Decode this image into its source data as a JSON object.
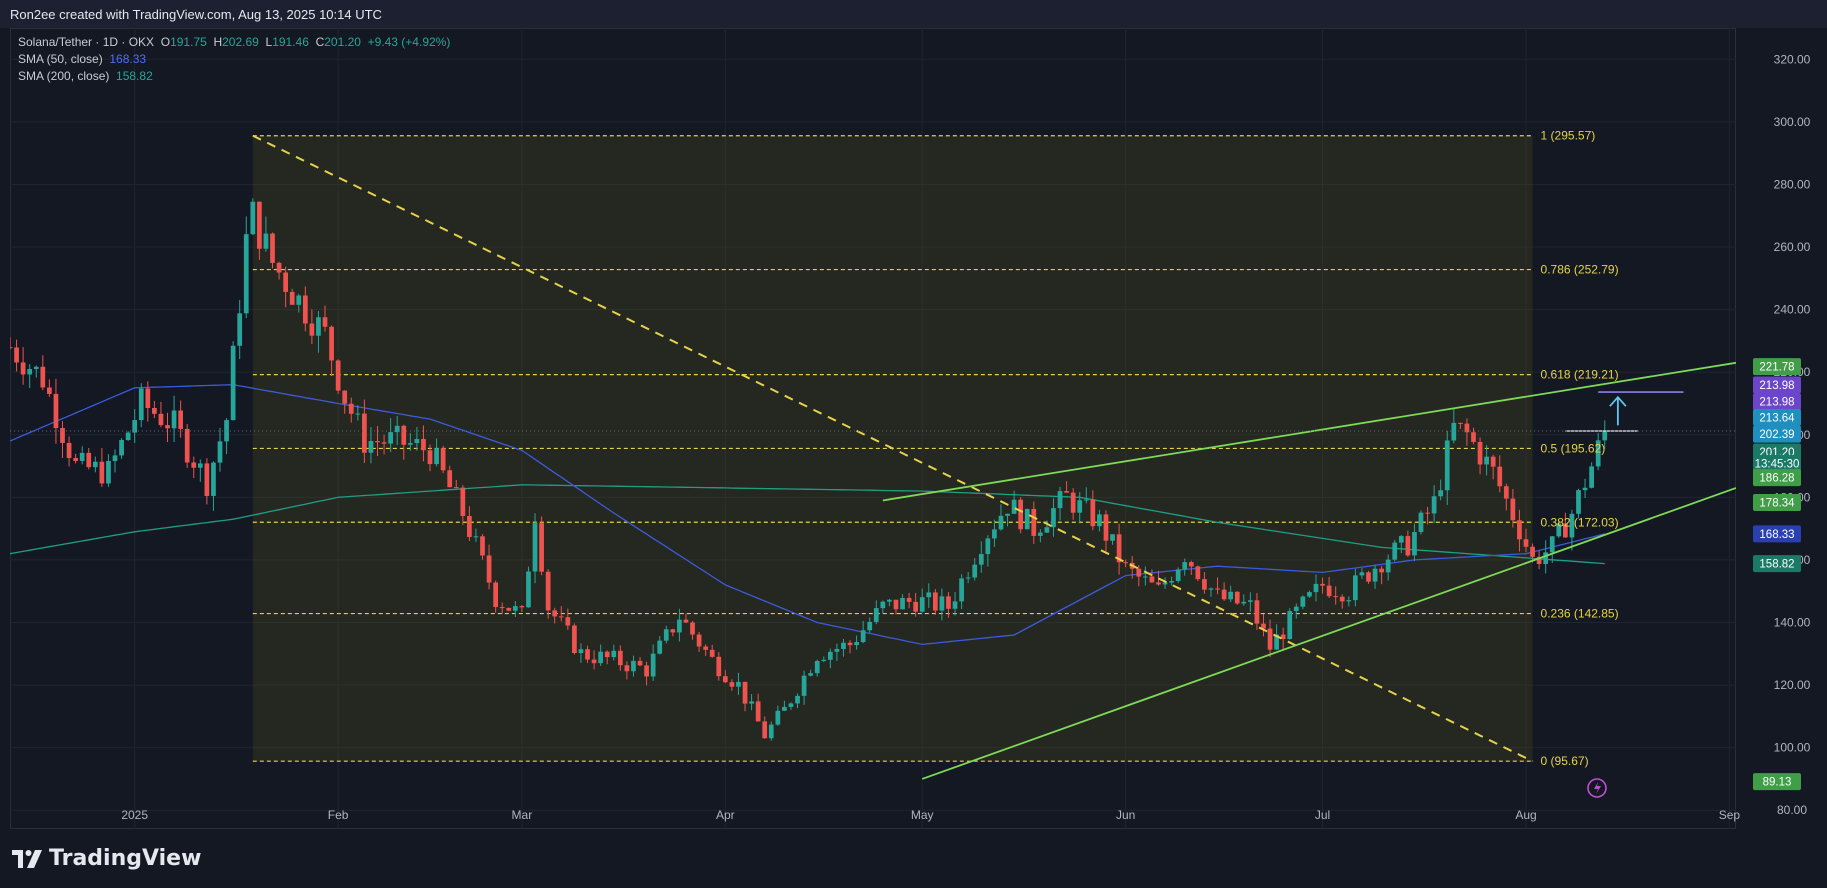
{
  "header": {
    "credit": "Ron2ee created with TradingView.com, Aug 13, 2025 10:14 UTC"
  },
  "legend": {
    "symbol": "Solana/Tether · 1D · OKX",
    "open_label": "O",
    "open": "191.75",
    "high_label": "H",
    "high": "202.69",
    "low_label": "L",
    "low": "191.46",
    "close_label": "C",
    "close": "201.20",
    "change": "+9.43 (+4.92%)",
    "sma50_label": "SMA (50, close)",
    "sma50_value": "168.33",
    "sma200_label": "SMA (200, close)",
    "sma200_value": "158.82"
  },
  "branding": {
    "logo_text": "TradingView"
  },
  "colors": {
    "up": "#26a69a",
    "down": "#ef5350",
    "sma50": "#3b5bdb",
    "sma200": "#1f9e86",
    "fib": "#e6d24a",
    "trend": "#7ed957",
    "target": "#8e7cf0",
    "arrow": "#5bc8f5"
  },
  "chart_data": {
    "type": "candlestick",
    "symbol": "Solana/Tether",
    "interval": "1D",
    "exchange": "OKX",
    "x_labels": [
      "2025",
      "Feb",
      "Mar",
      "Apr",
      "May",
      "Jun",
      "Jul",
      "Aug",
      "Sep"
    ],
    "x_label_dates": [
      "2025-01-01",
      "2025-02-01",
      "2025-03-01",
      "2025-04-01",
      "2025-05-01",
      "2025-06-01",
      "2025-07-01",
      "2025-08-01",
      "2025-09-01"
    ],
    "x_range": [
      "2024-12-13",
      "2025-09-02"
    ],
    "y_ticks": [
      80,
      100,
      120,
      140,
      160,
      180,
      200,
      220,
      240,
      260,
      280,
      300,
      320
    ],
    "ylim": [
      74,
      330
    ],
    "grid": true,
    "closes": [
      [
        "2024-12-13",
        228
      ],
      [
        "2024-12-18",
        218
      ],
      [
        "2024-12-23",
        190
      ],
      [
        "2024-12-28",
        188
      ],
      [
        "2025-01-02",
        210
      ],
      [
        "2025-01-07",
        203
      ],
      [
        "2025-01-12",
        185
      ],
      [
        "2025-01-15",
        205
      ],
      [
        "2025-01-18",
        262
      ],
      [
        "2025-01-19",
        270
      ],
      [
        "2025-01-22",
        255
      ],
      [
        "2025-01-26",
        243
      ],
      [
        "2025-01-30",
        232
      ],
      [
        "2025-02-02",
        212
      ],
      [
        "2025-02-05",
        198
      ],
      [
        "2025-02-10",
        198
      ],
      [
        "2025-02-15",
        195
      ],
      [
        "2025-02-20",
        175
      ],
      [
        "2025-02-25",
        148
      ],
      [
        "2025-03-01",
        142
      ],
      [
        "2025-03-03",
        175
      ],
      [
        "2025-03-05",
        145
      ],
      [
        "2025-03-10",
        130
      ],
      [
        "2025-03-15",
        128
      ],
      [
        "2025-03-20",
        125
      ],
      [
        "2025-03-25",
        142
      ],
      [
        "2025-03-30",
        128
      ],
      [
        "2025-04-03",
        120
      ],
      [
        "2025-04-07",
        104
      ],
      [
        "2025-04-10",
        112
      ],
      [
        "2025-04-15",
        130
      ],
      [
        "2025-04-20",
        133
      ],
      [
        "2025-04-25",
        145
      ],
      [
        "2025-04-30",
        147
      ],
      [
        "2025-05-05",
        145
      ],
      [
        "2025-05-10",
        166
      ],
      [
        "2025-05-14",
        178
      ],
      [
        "2025-05-18",
        170
      ],
      [
        "2025-05-23",
        180
      ],
      [
        "2025-05-28",
        172
      ],
      [
        "2025-06-01",
        157
      ],
      [
        "2025-06-06",
        150
      ],
      [
        "2025-06-10",
        162
      ],
      [
        "2025-06-15",
        148
      ],
      [
        "2025-06-20",
        145
      ],
      [
        "2025-06-23",
        132
      ],
      [
        "2025-06-27",
        143
      ],
      [
        "2025-07-01",
        152
      ],
      [
        "2025-07-05",
        150
      ],
      [
        "2025-07-10",
        160
      ],
      [
        "2025-07-14",
        165
      ],
      [
        "2025-07-18",
        178
      ],
      [
        "2025-07-21",
        202
      ],
      [
        "2025-07-23",
        200
      ],
      [
        "2025-07-27",
        188
      ],
      [
        "2025-07-31",
        170
      ],
      [
        "2025-08-02",
        160
      ],
      [
        "2025-08-05",
        164
      ],
      [
        "2025-08-08",
        175
      ],
      [
        "2025-08-11",
        190
      ],
      [
        "2025-08-13",
        201.2
      ]
    ],
    "sma50": [
      [
        "2024-12-13",
        198
      ],
      [
        "2025-01-01",
        215
      ],
      [
        "2025-01-16",
        216
      ],
      [
        "2025-02-01",
        210
      ],
      [
        "2025-02-15",
        205
      ],
      [
        "2025-03-01",
        195
      ],
      [
        "2025-03-15",
        175
      ],
      [
        "2025-04-01",
        152
      ],
      [
        "2025-04-15",
        140
      ],
      [
        "2025-05-01",
        133
      ],
      [
        "2025-05-15",
        136
      ],
      [
        "2025-06-01",
        155
      ],
      [
        "2025-06-15",
        158
      ],
      [
        "2025-07-01",
        156
      ],
      [
        "2025-07-15",
        160
      ],
      [
        "2025-08-01",
        162
      ],
      [
        "2025-08-13",
        168.33
      ]
    ],
    "sma200": [
      [
        "2024-12-13",
        162
      ],
      [
        "2025-01-01",
        169
      ],
      [
        "2025-01-16",
        173
      ],
      [
        "2025-02-01",
        180
      ],
      [
        "2025-03-01",
        184
      ],
      [
        "2025-04-01",
        183
      ],
      [
        "2025-05-01",
        182
      ],
      [
        "2025-05-25",
        180
      ],
      [
        "2025-06-15",
        172
      ],
      [
        "2025-07-10",
        164
      ],
      [
        "2025-08-13",
        158.82
      ]
    ],
    "fibonacci": {
      "from_date": "2025-01-19",
      "to_date": "2025-08-02",
      "levels": [
        {
          "label": "1 (295.57)",
          "price": 295.57
        },
        {
          "label": "0.786 (252.79)",
          "price": 252.79
        },
        {
          "label": "0.618 (219.21)",
          "price": 219.21
        },
        {
          "label": "0.5 (195.62)",
          "price": 195.62
        },
        {
          "label": "0.382 (172.03)",
          "price": 172.03
        },
        {
          "label": "0.236 (142.85)",
          "price": 142.85
        },
        {
          "label": "0 (95.67)",
          "price": 95.67
        }
      ]
    },
    "lines": {
      "fib_diagonal": [
        [
          "2025-01-19",
          295.57
        ],
        [
          "2025-08-02",
          95.67
        ]
      ],
      "upper_trend": [
        [
          "2025-04-25",
          179
        ],
        [
          "2025-09-02",
          223
        ]
      ],
      "lower_trend": [
        [
          "2025-05-01",
          90
        ],
        [
          "2025-09-02",
          183
        ]
      ],
      "target_line": [
        [
          "2025-08-12",
          213.64
        ],
        [
          "2025-08-25",
          213.64
        ]
      ],
      "current_price_line": [
        [
          "2025-08-07",
          201.2
        ],
        [
          "2025-08-18",
          201.2
        ]
      ],
      "arrow": [
        [
          "2025-08-15",
          203
        ],
        [
          "2025-08-15",
          212
        ]
      ]
    },
    "price_labels": [
      {
        "text": "221.78",
        "price": 221.78,
        "color": "#3f9e47"
      },
      {
        "text": "213.98",
        "price": 215.9,
        "color": "#6c46c8"
      },
      {
        "text": "213.98",
        "price": 210.6,
        "color": "#6c46c8"
      },
      {
        "text": "213.64",
        "price": 205.5,
        "color": "#1e8fbf"
      },
      {
        "text": "202.39",
        "price": 200.2,
        "color": "#1e8fbf"
      },
      {
        "text": "201.20",
        "price": 194.5,
        "color": "#1a7a66"
      },
      {
        "text": "13:45:30",
        "price": 190.8,
        "color": "#1a7a66"
      },
      {
        "text": "186.28",
        "price": 186.28,
        "color": "#3f9e47"
      },
      {
        "text": "178.34",
        "price": 178.34,
        "color": "#3f9e47"
      },
      {
        "text": "168.33",
        "price": 168.33,
        "color": "#2a3fb0"
      },
      {
        "text": "158.82",
        "price": 158.82,
        "color": "#1a7a66"
      },
      {
        "text": "89.13",
        "price": 89.13,
        "color": "#3f9e47"
      }
    ]
  }
}
